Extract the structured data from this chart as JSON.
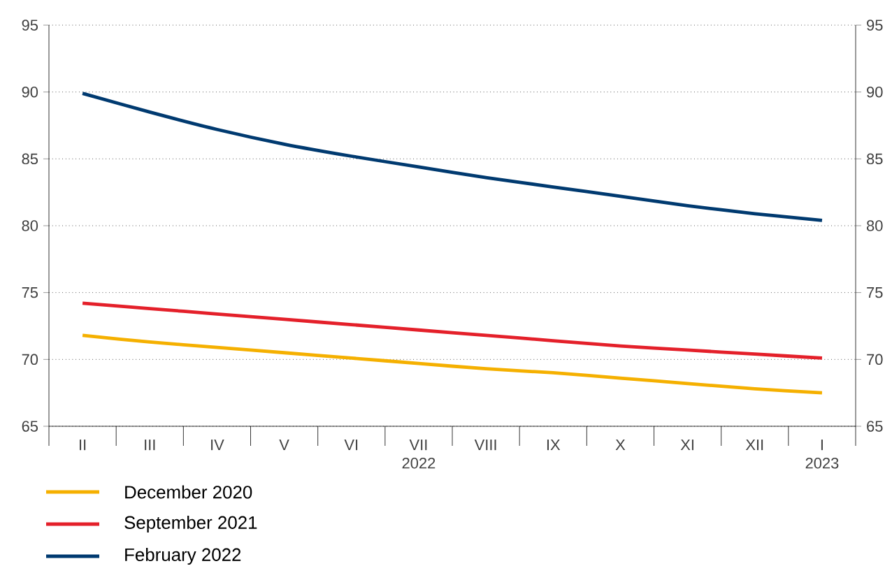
{
  "chart_data": {
    "type": "line",
    "categories": [
      "II",
      "III",
      "IV",
      "V",
      "VI",
      "VII",
      "VIII",
      "IX",
      "X",
      "XI",
      "XII",
      "I"
    ],
    "series": [
      {
        "name": "December 2020",
        "color": "#f5b000",
        "values": [
          71.8,
          71.3,
          70.9,
          70.5,
          70.1,
          69.7,
          69.3,
          69.0,
          68.6,
          68.2,
          67.8,
          67.5
        ]
      },
      {
        "name": "September 2021",
        "color": "#e4202a",
        "values": [
          74.2,
          73.8,
          73.4,
          73.0,
          72.6,
          72.2,
          71.8,
          71.4,
          71.0,
          70.7,
          70.4,
          70.1
        ]
      },
      {
        "name": "February 2022",
        "color": "#003a70",
        "values": [
          89.9,
          88.5,
          87.2,
          86.1,
          85.2,
          84.4,
          83.6,
          82.9,
          82.2,
          81.5,
          80.9,
          80.4
        ]
      }
    ],
    "ylim": [
      65,
      95
    ],
    "yticks": [
      65,
      70,
      75,
      80,
      85,
      90,
      95
    ],
    "y2lim": [
      65,
      95
    ],
    "y2ticks": [
      65,
      70,
      75,
      80,
      85,
      90,
      95
    ],
    "grid": "y",
    "legend": "bottom left",
    "line_style": "solid",
    "annotations": [
      "2022",
      "2023"
    ]
  }
}
